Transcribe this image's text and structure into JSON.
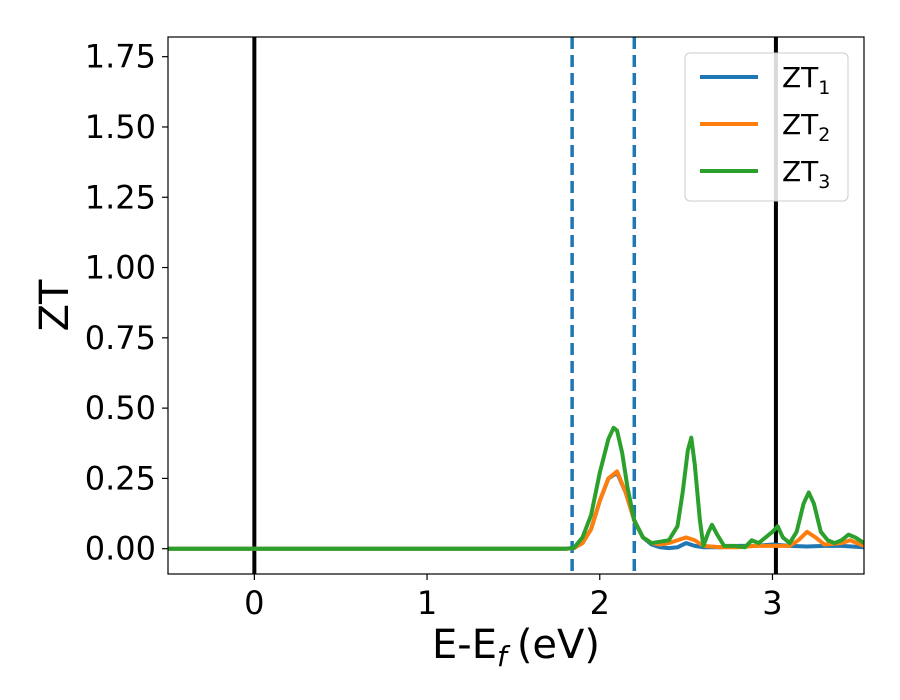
{
  "chart_data": {
    "type": "line",
    "xlabel": "E-E",
    "xlabel_sub": "f",
    "xlabel_unit": "(eV)",
    "ylabel": "ZT",
    "xlim": [
      -0.5,
      3.53
    ],
    "ylim": [
      -0.09,
      1.82
    ],
    "xticks": [
      0,
      1,
      2,
      3
    ],
    "xtick_labels": [
      "0",
      "1",
      "2",
      "3"
    ],
    "yticks": [
      0.0,
      0.25,
      0.5,
      0.75,
      1.0,
      1.25,
      1.5,
      1.75
    ],
    "ytick_labels": [
      "0.00",
      "0.25",
      "0.50",
      "0.75",
      "1.00",
      "1.25",
      "1.50",
      "1.75"
    ],
    "grid": false,
    "legend_position": "top-right",
    "vertical_lines": [
      {
        "x": 0.0,
        "style": "solid",
        "color": "#000000"
      },
      {
        "x": 3.02,
        "style": "solid",
        "color": "#000000"
      },
      {
        "x": 1.84,
        "style": "dashed",
        "color": "#1f77b4"
      },
      {
        "x": 2.2,
        "style": "dashed",
        "color": "#1f77b4"
      }
    ],
    "series": [
      {
        "name": "ZT",
        "sub": "1",
        "color": "#1f77b4",
        "x": [
          -0.5,
          1.8,
          1.85,
          1.9,
          1.95,
          2.0,
          2.05,
          2.1,
          2.15,
          2.2,
          2.25,
          2.3,
          2.35,
          2.4,
          2.45,
          2.5,
          2.55,
          2.6,
          2.7,
          2.8,
          2.9,
          3.0,
          3.1,
          3.2,
          3.3,
          3.4,
          3.53
        ],
        "y": [
          0.0,
          0.0,
          0.002,
          0.02,
          0.07,
          0.17,
          0.25,
          0.27,
          0.2,
          0.1,
          0.04,
          0.015,
          0.005,
          0.002,
          0.005,
          0.02,
          0.01,
          0.005,
          0.005,
          0.01,
          0.01,
          0.015,
          0.01,
          0.008,
          0.01,
          0.01,
          0.005
        ]
      },
      {
        "name": "ZT",
        "sub": "2",
        "color": "#ff7f0e",
        "x": [
          -0.5,
          1.8,
          1.85,
          1.9,
          1.95,
          2.0,
          2.05,
          2.1,
          2.15,
          2.2,
          2.25,
          2.3,
          2.35,
          2.4,
          2.45,
          2.5,
          2.55,
          2.6,
          2.7,
          2.8,
          2.9,
          3.0,
          3.1,
          3.15,
          3.2,
          3.25,
          3.3,
          3.4,
          3.45,
          3.53
        ],
        "y": [
          0.0,
          0.0,
          0.002,
          0.02,
          0.07,
          0.17,
          0.25,
          0.275,
          0.2,
          0.1,
          0.04,
          0.02,
          0.015,
          0.02,
          0.03,
          0.04,
          0.03,
          0.01,
          0.005,
          0.005,
          0.01,
          0.01,
          0.01,
          0.03,
          0.06,
          0.04,
          0.015,
          0.02,
          0.03,
          0.01
        ]
      },
      {
        "name": "ZT",
        "sub": "3",
        "color": "#2ca02c",
        "x": [
          -0.5,
          1.8,
          1.85,
          1.9,
          1.95,
          2.0,
          2.05,
          2.08,
          2.1,
          2.13,
          2.16,
          2.2,
          2.25,
          2.3,
          2.35,
          2.4,
          2.45,
          2.48,
          2.51,
          2.53,
          2.55,
          2.58,
          2.6,
          2.63,
          2.65,
          2.68,
          2.72,
          2.78,
          2.84,
          2.88,
          2.92,
          2.96,
          3.0,
          3.03,
          3.06,
          3.1,
          3.14,
          3.18,
          3.21,
          3.24,
          3.28,
          3.32,
          3.36,
          3.4,
          3.44,
          3.48,
          3.53
        ],
        "y": [
          0.0,
          0.0,
          0.003,
          0.04,
          0.12,
          0.27,
          0.39,
          0.43,
          0.42,
          0.34,
          0.22,
          0.1,
          0.04,
          0.02,
          0.025,
          0.03,
          0.08,
          0.2,
          0.35,
          0.395,
          0.3,
          0.1,
          0.01,
          0.06,
          0.085,
          0.05,
          0.01,
          0.01,
          0.005,
          0.03,
          0.02,
          0.04,
          0.06,
          0.08,
          0.04,
          0.02,
          0.06,
          0.16,
          0.2,
          0.16,
          0.06,
          0.03,
          0.02,
          0.03,
          0.05,
          0.04,
          0.02
        ]
      }
    ]
  }
}
